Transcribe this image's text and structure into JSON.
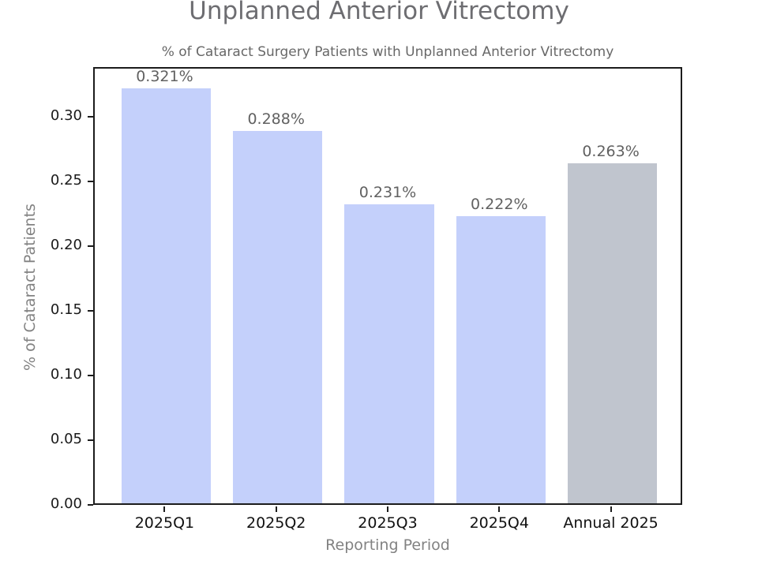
{
  "header": {
    "title": "Unplanned Anterior Vitrectomy"
  },
  "chart_data": {
    "type": "bar",
    "title": "% of Cataract Surgery Patients with Unplanned Anterior Vitrectomy",
    "xlabel": "Reporting Period",
    "ylabel": "% of Cataract Patients",
    "categories": [
      "2025Q1",
      "2025Q2",
      "2025Q3",
      "2025Q4",
      "Annual 2025"
    ],
    "values": [
      0.321,
      0.288,
      0.231,
      0.222,
      0.263
    ],
    "bar_labels": [
      "0.321%",
      "0.288%",
      "0.231%",
      "0.222%",
      "0.263%"
    ],
    "bar_colors": [
      "#c4d0fb",
      "#c4d0fb",
      "#c4d0fb",
      "#c4d0fb",
      "#c0c5ce"
    ],
    "ytick_labels": [
      "0.00",
      "0.05",
      "0.10",
      "0.15",
      "0.20",
      "0.25",
      "0.30"
    ],
    "ytick_values": [
      0.0,
      0.05,
      0.1,
      0.15,
      0.2,
      0.25,
      0.3
    ],
    "ylim": [
      0,
      0.3385
    ],
    "grid": false,
    "legend": null,
    "colors": {
      "quarter_bar": "#c4d0fb",
      "annual_bar": "#c0c5ce",
      "axis": "#1c1c1c",
      "title_text": "#6d6d71",
      "label_text": "#828282"
    }
  }
}
